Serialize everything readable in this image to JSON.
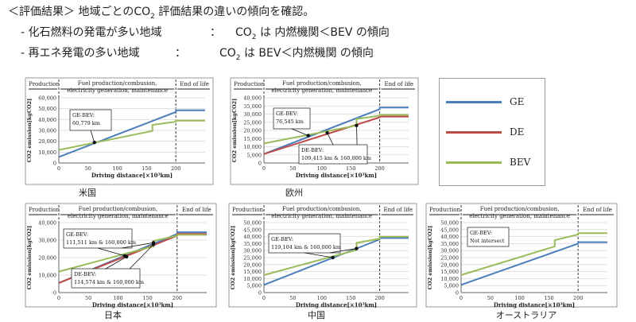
{
  "header": {
    "line1": {
      "bracket": "＜評価結果＞",
      "text_a": "地域ごとのCO",
      "sub": "2",
      "text_b": " 評価結果の違いの傾向を確認。"
    },
    "line2": {
      "a": "- 化石燃料の発電が多い地域",
      "colon": "：",
      "co2": "CO",
      "sub": "2",
      "b": " は 内燃機関＜BEV の傾向"
    },
    "line3": {
      "a": "- 再エネ発電の多い地域",
      "colon": "：",
      "co2": "CO",
      "sub": "2",
      "b": " は BEV＜内燃機関 の傾向"
    }
  },
  "legend": {
    "items": [
      {
        "label": "GE",
        "color": "#4a7ebb"
      },
      {
        "label": "DE",
        "color": "#be4b48"
      },
      {
        "label": "BEV",
        "color": "#9bbb59"
      }
    ]
  },
  "chart_data": [
    {
      "type": "line",
      "region": "米国",
      "phases": [
        "Production",
        "Fuel production/combusion,",
        "electricity generation, maintenance",
        "End of life"
      ],
      "xlabel": "Driving distance[×10³km]",
      "ylabel": "CO2 emission[kgCO2]",
      "xlim": [
        0,
        250
      ],
      "ylim": [
        0,
        60000
      ],
      "xticks": [
        "0",
        "50",
        "100",
        "150",
        "200"
      ],
      "yticks": [
        "0",
        "10,000",
        "20,000",
        "30,000",
        "40,000",
        "50,000",
        "60,000"
      ],
      "series": [
        {
          "name": "GE",
          "x": [
            0,
            200,
            200,
            250
          ],
          "y": [
            5500,
            47000,
            48500,
            48500
          ]
        },
        {
          "name": "BEV",
          "x": [
            0,
            160,
            160,
            200,
            200,
            250
          ],
          "y": [
            12000,
            29500,
            35000,
            38000,
            39000,
            39000
          ]
        }
      ],
      "annotations": [
        {
          "text": "GE-BEV:",
          "text2": "60,779 km",
          "x": 60.8,
          "y": 18900
        }
      ]
    },
    {
      "type": "line",
      "region": "欧州",
      "phases": [
        "Production",
        "Fuel production/combusion,",
        "electricity generation, maintenance",
        "End of life"
      ],
      "xlabel": "Driving distance[×10³km]",
      "ylabel": "CO2 emission[kgCO2]",
      "xlim": [
        0,
        250
      ],
      "ylim": [
        0,
        40000
      ],
      "xticks": [
        "0",
        "50",
        "100",
        "150",
        "200"
      ],
      "yticks": [
        "0",
        "5,000",
        "10,000",
        "15,000",
        "20,000",
        "25,000",
        "30,000",
        "35,000",
        "40,000"
      ],
      "series": [
        {
          "name": "GE",
          "x": [
            0,
            200,
            200,
            250
          ],
          "y": [
            5500,
            33000,
            34000,
            34000
          ]
        },
        {
          "name": "DE",
          "x": [
            0,
            200,
            200,
            250
          ],
          "y": [
            5500,
            28000,
            28500,
            28500
          ]
        },
        {
          "name": "BEV",
          "x": [
            0,
            160,
            160,
            200,
            200,
            250
          ],
          "y": [
            12000,
            23000,
            27000,
            29000,
            29500,
            29500
          ]
        }
      ],
      "annotations": [
        {
          "text": "GE-BEV:",
          "text2": "76,545 km",
          "x": 76.5,
          "y": 16800
        },
        {
          "text": "DE-BEV:",
          "text2": "109,415 km & 160,000 km",
          "x": 109.4,
          "y": 18500,
          "x2": 160,
          "y2": 23000
        }
      ]
    },
    {
      "type": "line",
      "region": "日本",
      "phases": [
        "Production",
        "Fuel production/combusion,",
        "electricity generation, maintenance",
        "End of life"
      ],
      "xlabel": "Driving distance[×10³km]",
      "ylabel": "CO2 emission[kgCO2]",
      "xlim": [
        0,
        250
      ],
      "ylim": [
        0,
        40000
      ],
      "xticks": [
        "0",
        "50",
        "100",
        "150",
        "200"
      ],
      "yticks": [
        "0",
        "10,000",
        "20,000",
        "30,000",
        "40,000"
      ],
      "series": [
        {
          "name": "GE",
          "x": [
            0,
            200,
            200,
            250
          ],
          "y": [
            5500,
            33500,
            34500,
            34500
          ]
        },
        {
          "name": "DE",
          "x": [
            0,
            200,
            200,
            250
          ],
          "y": [
            5500,
            32500,
            33500,
            33500
          ]
        },
        {
          "name": "BEV",
          "x": [
            0,
            160,
            160,
            200,
            200,
            250
          ],
          "y": [
            12000,
            26500,
            29500,
            32500,
            33000,
            33000
          ]
        }
      ],
      "annotations": [
        {
          "text": "GE-BEV:",
          "text2": "111,511 km & 160,000 km",
          "x": 111.5,
          "y": 21000,
          "x2": 160,
          "y2": 28500
        },
        {
          "text": "DE-BEV:",
          "text2": "114,574 km & 160,000 km",
          "x": 114.6,
          "y": 20500,
          "x2": 160,
          "y2": 27500
        }
      ]
    },
    {
      "type": "line",
      "region": "中国",
      "phases": [
        "Production",
        "Fuel production/combusion,",
        "electricity generation, maintenance",
        "End of life"
      ],
      "xlabel": "Driving distance[×10³km]",
      "ylabel": "CO2 emission[kgCO2]",
      "xlim": [
        0,
        250
      ],
      "ylim": [
        0,
        50000
      ],
      "xticks": [
        "0",
        "50",
        "100",
        "150",
        "200"
      ],
      "yticks": [
        "0",
        "5,000",
        "10,000",
        "15,000",
        "20,000",
        "25,000",
        "30,000",
        "35,000",
        "40,000",
        "45,000",
        "50,000"
      ],
      "series": [
        {
          "name": "GE",
          "x": [
            0,
            200,
            200,
            250
          ],
          "y": [
            5500,
            38000,
            39000,
            39000
          ]
        },
        {
          "name": "BEV",
          "x": [
            0,
            160,
            160,
            200,
            200,
            250
          ],
          "y": [
            12500,
            30500,
            35500,
            38500,
            40000,
            40000
          ]
        }
      ],
      "annotations": [
        {
          "text": "GE-BEV:",
          "text2": "119,104 km & 160,000 km",
          "x": 119.1,
          "y": 25000,
          "x2": 160,
          "y2": 31500
        }
      ]
    },
    {
      "type": "line",
      "region": "オーストラリア",
      "phases": [
        "Production",
        "Fuel production/combusion,",
        "electricity generation, maintenance",
        "End of life"
      ],
      "xlabel": "Driving distance[×10³km]",
      "ylabel": "CO2 emission[kgCO2]",
      "xlim": [
        0,
        250
      ],
      "ylim": [
        0,
        50000
      ],
      "xticks": [
        "0",
        "50",
        "100",
        "150",
        "200"
      ],
      "yticks": [
        "0",
        "5,000",
        "10,000",
        "15,000",
        "20,000",
        "25,000",
        "30,000",
        "35,000",
        "40,000",
        "45,000",
        "50,000"
      ],
      "series": [
        {
          "name": "GE",
          "x": [
            0,
            200,
            200,
            250
          ],
          "y": [
            5500,
            35000,
            36000,
            36000
          ]
        },
        {
          "name": "BEV",
          "x": [
            0,
            160,
            160,
            200,
            200,
            250
          ],
          "y": [
            12500,
            33000,
            37500,
            41500,
            42500,
            42500
          ]
        }
      ],
      "annotations": [
        {
          "text": "GE-BEV:",
          "text2": "Not intersect"
        }
      ]
    }
  ]
}
